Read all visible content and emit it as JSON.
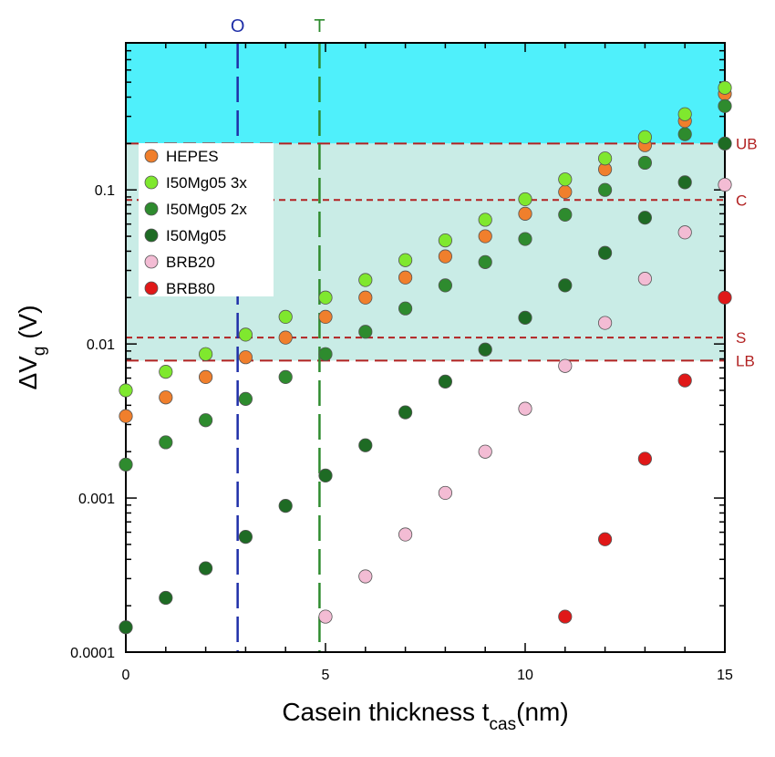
{
  "chart_data": {
    "type": "scatter",
    "x_scale": "linear",
    "y_scale": "log",
    "xlim": [
      0,
      15
    ],
    "ylim": [
      0.0001,
      0.9
    ],
    "xlabel_main": "Casein thickness t",
    "xlabel_sub": "cas",
    "xlabel_tail": "(nm)",
    "ylabel_main": "ΔV",
    "ylabel_sub": "g",
    "ylabel_tail": " (V)",
    "x_ticks": [
      0,
      5,
      10,
      15
    ],
    "x_tick_labels": [
      "0",
      "5",
      "10",
      "15"
    ],
    "y_ticks": [
      0.0001,
      0.001,
      0.01,
      0.1
    ],
    "y_tick_labels": [
      "0.0001",
      "0.001",
      "0.01",
      "0.1"
    ],
    "grid": false,
    "legend_position": "upper-left",
    "bands": [
      {
        "from": 0.2,
        "to": 0.9,
        "color": "#4ff0fb"
      },
      {
        "from": 0.0078,
        "to": 0.2,
        "color": "#c9ece6"
      }
    ],
    "hlines": [
      {
        "label": "UB",
        "y": 0.2,
        "color": "#b22222",
        "dash": "long"
      },
      {
        "label": "C",
        "y": 0.086,
        "color": "#b22222",
        "dash": "short"
      },
      {
        "label": "S",
        "y": 0.011,
        "color": "#b22222",
        "dash": "short"
      },
      {
        "label": "LB",
        "y": 0.0078,
        "color": "#b22222",
        "dash": "long"
      }
    ],
    "vlines": [
      {
        "label": "O",
        "x": 2.8,
        "color": "#1f2fa8"
      },
      {
        "label": "T",
        "x": 4.85,
        "color": "#2e8b2e"
      }
    ],
    "series": [
      {
        "name": "HEPES",
        "color": "#f07f2c",
        "x": [
          0,
          1,
          2,
          3,
          4,
          5,
          6,
          7,
          8,
          9,
          10,
          11,
          12,
          13,
          14,
          15
        ],
        "y": [
          0.0034,
          0.0045,
          0.0061,
          0.0082,
          0.011,
          0.015,
          0.02,
          0.027,
          0.037,
          0.05,
          0.07,
          0.097,
          0.136,
          0.195,
          0.28,
          0.42
        ]
      },
      {
        "name": "I50Mg05 3x",
        "color": "#7fe82e",
        "x": [
          0,
          1,
          2,
          3,
          4,
          5,
          6,
          7,
          8,
          9,
          10,
          11,
          12,
          13,
          14,
          15
        ],
        "y": [
          0.005,
          0.0066,
          0.0086,
          0.0115,
          0.015,
          0.02,
          0.026,
          0.035,
          0.047,
          0.064,
          0.087,
          0.117,
          0.16,
          0.22,
          0.31,
          0.46
        ]
      },
      {
        "name": "I50Mg05 2x",
        "color": "#2e8b2e",
        "x": [
          0,
          1,
          2,
          3,
          4,
          5,
          6,
          7,
          8,
          9,
          10,
          11,
          12,
          13,
          14,
          15
        ],
        "y": [
          0.00165,
          0.0023,
          0.0032,
          0.0044,
          0.0061,
          0.0086,
          0.012,
          0.017,
          0.024,
          0.034,
          0.048,
          0.069,
          0.1,
          0.15,
          0.23,
          0.35
        ]
      },
      {
        "name": "I50Mg05",
        "color": "#1e6b24",
        "x": [
          0,
          1,
          2,
          3,
          4,
          5,
          6,
          7,
          8,
          9,
          10,
          11,
          12,
          13,
          14,
          15
        ],
        "y": [
          0.000145,
          0.000225,
          0.00035,
          0.00056,
          0.00089,
          0.0014,
          0.0022,
          0.0036,
          0.0057,
          0.0092,
          0.0148,
          0.024,
          0.039,
          0.066,
          0.112,
          0.2
        ]
      },
      {
        "name": "BRB20",
        "color": "#f3bcd4",
        "x": [
          5,
          6,
          7,
          8,
          9,
          10,
          11,
          12,
          13,
          14,
          15
        ],
        "y": [
          0.00017,
          0.00031,
          0.00058,
          0.00108,
          0.002,
          0.0038,
          0.0072,
          0.0137,
          0.0265,
          0.053,
          0.108
        ]
      },
      {
        "name": "BRB80",
        "color": "#e01818",
        "x": [
          11,
          12,
          13,
          14,
          15
        ],
        "y": [
          0.00017,
          0.00054,
          0.0018,
          0.0058,
          0.02
        ]
      }
    ]
  }
}
